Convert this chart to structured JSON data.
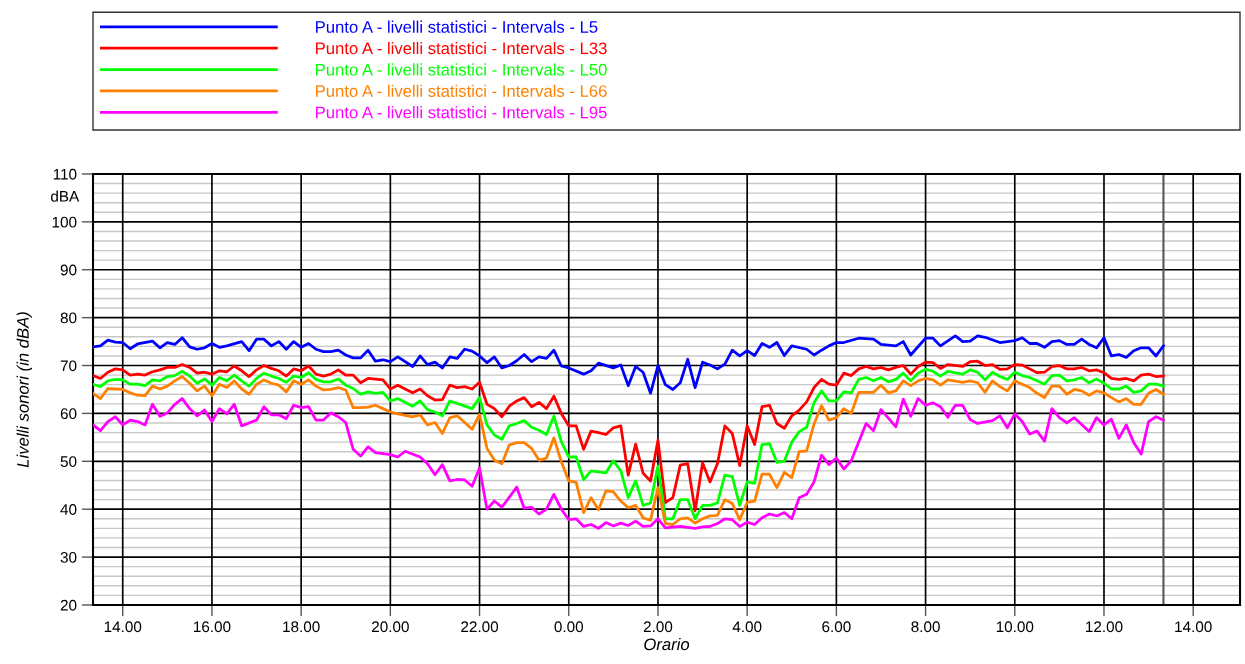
{
  "chart_data": {
    "type": "line",
    "xlabel": "Orario",
    "ylabel": "Livelli sonori (in dBA)",
    "annotations": [
      "dBA"
    ],
    "xlim": [
      "2000-01-01T13:20",
      "2000-01-02T15:03"
    ],
    "xticks": [
      {
        "value": "2000-01-01T14:00",
        "label": "14.00"
      },
      {
        "value": "2000-01-01T16:00",
        "label": "16.00"
      },
      {
        "value": "2000-01-01T18:00",
        "label": "18.00"
      },
      {
        "value": "2000-01-01T20:00",
        "label": "20.00"
      },
      {
        "value": "2000-01-01T22:00",
        "label": "22.00"
      },
      {
        "value": "2000-01-02T00:00",
        "label": "0.00"
      },
      {
        "value": "2000-01-02T02:00",
        "label": "2.00"
      },
      {
        "value": "2000-01-02T04:00",
        "label": "4.00"
      },
      {
        "value": "2000-01-02T06:00",
        "label": "6.00"
      },
      {
        "value": "2000-01-02T08:00",
        "label": "8.00"
      },
      {
        "value": "2000-01-02T10:00",
        "label": "10.00"
      },
      {
        "value": "2000-01-02T12:00",
        "label": "12.00"
      },
      {
        "value": "2000-01-02T14:00",
        "label": "14.00"
      }
    ],
    "ylim": [
      20,
      110
    ],
    "yticks": [
      20,
      {
        "value": 22,
        "label": null
      },
      {
        "value": 24,
        "label": null
      },
      {
        "value": 26,
        "label": null
      },
      {
        "value": 28,
        "label": null
      },
      30,
      {
        "value": 32,
        "label": null
      },
      {
        "value": 34,
        "label": null
      },
      {
        "value": 36,
        "label": null
      },
      {
        "value": 38,
        "label": null
      },
      40,
      {
        "value": 42,
        "label": null
      },
      {
        "value": 44,
        "label": null
      },
      {
        "value": 46,
        "label": null
      },
      {
        "value": 48,
        "label": null
      },
      50,
      {
        "value": 52,
        "label": null
      },
      {
        "value": 54,
        "label": null
      },
      {
        "value": 56,
        "label": null
      },
      {
        "value": 58,
        "label": null
      },
      60,
      {
        "value": 62,
        "label": null
      },
      {
        "value": 64,
        "label": null
      },
      {
        "value": 66,
        "label": null
      },
      {
        "value": 68,
        "label": null
      },
      70,
      {
        "value": 72,
        "label": null
      },
      {
        "value": 74,
        "label": null
      },
      {
        "value": 76,
        "label": null
      },
      {
        "value": 78,
        "label": null
      },
      80,
      {
        "value": 82,
        "label": null
      },
      {
        "value": 84,
        "label": null
      },
      {
        "value": 86,
        "label": null
      },
      {
        "value": 88,
        "label": null
      },
      90,
      {
        "value": 92,
        "label": null
      },
      {
        "value": 94,
        "label": null
      },
      {
        "value": 96,
        "label": null
      },
      {
        "value": 98,
        "label": null
      },
      100,
      {
        "value": 102,
        "label": null
      },
      {
        "value": 104,
        "label": null
      },
      {
        "value": 106,
        "label": null
      },
      {
        "value": 108,
        "label": null
      },
      110
    ],
    "grid": true,
    "legend": "top",
    "marker": "none",
    "line_style": "solid",
    "ref_lines": [
      {
        "axis": "x",
        "value": "2000-01-02T13:20",
        "label": null,
        "color": "#555555"
      }
    ],
    "series": [
      {
        "name": "Punto A - livelli statistici - Intervals - L5",
        "color": "#0000ff",
        "x": [
          "2000-01-01T13:20",
          "2000-01-01T13:30",
          "2000-01-01T13:40",
          "2000-01-01T13:50",
          "2000-01-01T14:00",
          "2000-01-01T14:10",
          "2000-01-01T14:20",
          "2000-01-01T14:40",
          "2000-01-01T14:50",
          "2000-01-01T15:00",
          "2000-01-01T15:10",
          "2000-01-01T15:20",
          "2000-01-01T15:30",
          "2000-01-01T15:40",
          "2000-01-01T15:50",
          "2000-01-01T16:00",
          "2000-01-01T16:10",
          "2000-01-01T16:20",
          "2000-01-01T16:40",
          "2000-01-01T16:50",
          "2000-01-01T17:00",
          "2000-01-01T17:10",
          "2000-01-01T17:20",
          "2000-01-01T17:30",
          "2000-01-01T17:40",
          "2000-01-01T17:50",
          "2000-01-01T18:00",
          "2000-01-01T18:10",
          "2000-01-01T18:20",
          "2000-01-01T18:30",
          "2000-01-01T18:40",
          "2000-01-01T18:50",
          "2000-01-01T19:00",
          "2000-01-01T19:10",
          "2000-01-01T19:20",
          "2000-01-01T19:30",
          "2000-01-01T19:40",
          "2000-01-01T19:50",
          "2000-01-01T20:00",
          "2000-01-01T20:10",
          "2000-01-01T20:30",
          "2000-01-01T20:40",
          "2000-01-01T20:50",
          "2000-01-01T21:00",
          "2000-01-01T21:10",
          "2000-01-01T21:20",
          "2000-01-01T21:30",
          "2000-01-01T21:40",
          "2000-01-01T21:50",
          "2000-01-01T22:00",
          "2000-01-01T22:10",
          "2000-01-01T22:20",
          "2000-01-01T22:30",
          "2000-01-01T22:40",
          "2000-01-01T22:50",
          "2000-01-01T23:00",
          "2000-01-01T23:10",
          "2000-01-01T23:20",
          "2000-01-01T23:30",
          "2000-01-01T23:40",
          "2000-01-01T23:50",
          "2000-01-02T00:00",
          "2000-01-02T00:20",
          "2000-01-02T00:30",
          "2000-01-02T00:40",
          "2000-01-02T01:00",
          "2000-01-02T01:10",
          "2000-01-02T01:20",
          "2000-01-02T01:30",
          "2000-01-02T01:40",
          "2000-01-02T01:50",
          "2000-01-02T02:00",
          "2000-01-02T02:10",
          "2000-01-02T02:20",
          "2000-01-02T02:30",
          "2000-01-02T02:40",
          "2000-01-02T02:50",
          "2000-01-02T03:00",
          "2000-01-02T03:10",
          "2000-01-02T03:20",
          "2000-01-02T03:30",
          "2000-01-02T03:40",
          "2000-01-02T03:50",
          "2000-01-02T04:00",
          "2000-01-02T04:10",
          "2000-01-02T04:20",
          "2000-01-02T04:30",
          "2000-01-02T04:40",
          "2000-01-02T04:50",
          "2000-01-02T05:00",
          "2000-01-02T05:20",
          "2000-01-02T05:30",
          "2000-01-02T05:40",
          "2000-01-02T05:50",
          "2000-01-02T06:00",
          "2000-01-02T06:10",
          "2000-01-02T06:30",
          "2000-01-02T06:50",
          "2000-01-02T07:00",
          "2000-01-02T07:20",
          "2000-01-02T07:30",
          "2000-01-02T07:40",
          "2000-01-02T08:00",
          "2000-01-02T08:10",
          "2000-01-02T08:20",
          "2000-01-02T08:40",
          "2000-01-02T08:50",
          "2000-01-02T09:00",
          "2000-01-02T09:10",
          "2000-01-02T09:20",
          "2000-01-02T09:40",
          "2000-01-02T10:00",
          "2000-01-02T10:10",
          "2000-01-02T10:20",
          "2000-01-02T10:30",
          "2000-01-02T10:40",
          "2000-01-02T10:50",
          "2000-01-02T11:00",
          "2000-01-02T11:10",
          "2000-01-02T11:20",
          "2000-01-02T11:30",
          "2000-01-02T11:40",
          "2000-01-02T11:50",
          "2000-01-02T12:00",
          "2000-01-02T12:10",
          "2000-01-02T12:20",
          "2000-01-02T12:30",
          "2000-01-02T12:40",
          "2000-01-02T12:50",
          "2000-01-02T13:00",
          "2000-01-02T13:10",
          "2000-01-02T13:20"
        ],
        "values": [
          73.9,
          74.1,
          75.3,
          74.9,
          74.8,
          73.5,
          74.5,
          75.1,
          73.7,
          74.8,
          74.4,
          75.8,
          73.9,
          73.4,
          73.7,
          74.6,
          73.8,
          74.1,
          75.0,
          73.1,
          75.5,
          75.5,
          74.1,
          75.0,
          73.4,
          75.0,
          73.8,
          74.6,
          73.4,
          72.9,
          72.9,
          73.2,
          72.2,
          71.6,
          71.6,
          73.2,
          70.9,
          71.2,
          70.8,
          71.8,
          69.8,
          72.0,
          70.2,
          70.7,
          69.5,
          71.8,
          71.5,
          73.4,
          73.0,
          72.0,
          70.6,
          71.8,
          69.5,
          70.0,
          71.0,
          72.3,
          70.8,
          71.8,
          71.5,
          73.2,
          69.9,
          69.5,
          68.2,
          68.9,
          70.5,
          69.5,
          70.1,
          65.8,
          69.8,
          68.6,
          64.2,
          70.0,
          66.0,
          65.0,
          66.4,
          71.3,
          65.4,
          70.7,
          70.1,
          69.3,
          70.3,
          73.2,
          72.0,
          73.1,
          72.1,
          74.6,
          73.8,
          74.8,
          72.1,
          74.1,
          73.4,
          72.2,
          73.2,
          74.1,
          74.8,
          74.8,
          75.7,
          75.5,
          74.4,
          74.1,
          75.0,
          72.2,
          75.7,
          75.7,
          74.1,
          76.2,
          75.0,
          75.1,
          76.2,
          75.9,
          74.8,
          75.2,
          75.8,
          74.6,
          74.6,
          73.8,
          75.0,
          75.2,
          74.4,
          74.4,
          75.5,
          74.4,
          73.7,
          75.8,
          72.0,
          72.3,
          71.7,
          73.1,
          73.7,
          73.7,
          72.0,
          74.1
        ]
      },
      {
        "name": "Punto A - livelli statistici - Intervals - L33",
        "color": "#ff0000",
        "x": [
          "2000-01-01T13:20",
          "2000-01-01T13:30",
          "2000-01-01T13:40",
          "2000-01-01T13:50",
          "2000-01-01T14:00",
          "2000-01-01T14:10",
          "2000-01-01T14:20",
          "2000-01-01T14:30",
          "2000-01-01T14:40",
          "2000-01-01T14:50",
          "2000-01-01T15:00",
          "2000-01-01T15:10",
          "2000-01-01T15:20",
          "2000-01-01T15:30",
          "2000-01-01T15:40",
          "2000-01-01T15:50",
          "2000-01-01T16:00",
          "2000-01-01T16:10",
          "2000-01-01T16:20",
          "2000-01-01T16:30",
          "2000-01-01T16:40",
          "2000-01-01T16:50",
          "2000-01-01T17:00",
          "2000-01-01T17:10",
          "2000-01-01T17:20",
          "2000-01-01T17:30",
          "2000-01-01T17:40",
          "2000-01-01T17:50",
          "2000-01-01T18:00",
          "2000-01-01T18:10",
          "2000-01-01T18:20",
          "2000-01-01T18:30",
          "2000-01-01T18:40",
          "2000-01-01T18:50",
          "2000-01-01T19:00",
          "2000-01-01T19:10",
          "2000-01-01T19:20",
          "2000-01-01T19:30",
          "2000-01-01T19:50",
          "2000-01-01T20:00",
          "2000-01-01T20:10",
          "2000-01-01T20:30",
          "2000-01-01T20:40",
          "2000-01-01T20:50",
          "2000-01-01T21:00",
          "2000-01-01T21:10",
          "2000-01-01T21:20",
          "2000-01-01T21:30",
          "2000-01-01T21:40",
          "2000-01-01T21:50",
          "2000-01-01T22:00",
          "2000-01-01T22:10",
          "2000-01-01T22:20",
          "2000-01-01T22:30",
          "2000-01-01T22:40",
          "2000-01-01T22:50",
          "2000-01-01T23:00",
          "2000-01-01T23:10",
          "2000-01-01T23:20",
          "2000-01-01T23:30",
          "2000-01-01T23:40",
          "2000-01-01T23:50",
          "2000-01-02T00:00",
          "2000-01-02T00:10",
          "2000-01-02T00:20",
          "2000-01-02T00:30",
          "2000-01-02T00:40",
          "2000-01-02T00:50",
          "2000-01-02T01:00",
          "2000-01-02T01:10",
          "2000-01-02T01:20",
          "2000-01-02T01:30",
          "2000-01-02T01:40",
          "2000-01-02T01:50",
          "2000-01-02T02:00",
          "2000-01-02T02:10",
          "2000-01-02T02:20",
          "2000-01-02T02:30",
          "2000-01-02T02:40",
          "2000-01-02T02:50",
          "2000-01-02T03:00",
          "2000-01-02T03:10",
          "2000-01-02T03:20",
          "2000-01-02T03:30",
          "2000-01-02T03:40",
          "2000-01-02T03:50",
          "2000-01-02T04:00",
          "2000-01-02T04:10",
          "2000-01-02T04:20",
          "2000-01-02T04:30",
          "2000-01-02T04:40",
          "2000-01-02T04:50",
          "2000-01-02T05:00",
          "2000-01-02T05:10",
          "2000-01-02T05:20",
          "2000-01-02T05:30",
          "2000-01-02T05:40",
          "2000-01-02T05:50",
          "2000-01-02T06:00",
          "2000-01-02T06:10",
          "2000-01-02T06:20",
          "2000-01-02T06:30",
          "2000-01-02T06:40",
          "2000-01-02T06:50",
          "2000-01-02T07:00",
          "2000-01-02T07:10",
          "2000-01-02T07:20",
          "2000-01-02T07:30",
          "2000-01-02T07:40",
          "2000-01-02T07:50",
          "2000-01-02T08:00",
          "2000-01-02T08:10",
          "2000-01-02T08:20",
          "2000-01-02T08:30",
          "2000-01-02T08:50",
          "2000-01-02T09:00",
          "2000-01-02T09:10",
          "2000-01-02T09:20",
          "2000-01-02T09:30",
          "2000-01-02T09:40",
          "2000-01-02T09:50",
          "2000-01-02T10:00",
          "2000-01-02T10:10",
          "2000-01-02T10:20",
          "2000-01-02T10:30",
          "2000-01-02T10:40",
          "2000-01-02T10:50",
          "2000-01-02T11:00",
          "2000-01-02T11:10",
          "2000-01-02T11:20",
          "2000-01-02T11:30",
          "2000-01-02T11:40",
          "2000-01-02T11:50",
          "2000-01-02T12:00",
          "2000-01-02T12:10",
          "2000-01-02T12:20",
          "2000-01-02T12:30",
          "2000-01-02T12:40",
          "2000-01-02T12:50",
          "2000-01-02T13:00",
          "2000-01-02T13:10",
          "2000-01-02T13:20"
        ],
        "values": [
          67.9,
          67.3,
          68.6,
          69.3,
          69.1,
          68.0,
          68.2,
          68.0,
          68.7,
          69.1,
          69.6,
          69.6,
          70.2,
          69.6,
          68.4,
          68.6,
          68.2,
          68.9,
          68.7,
          69.9,
          68.9,
          67.7,
          69.1,
          70.0,
          69.4,
          68.9,
          67.8,
          69.3,
          68.9,
          69.9,
          68.2,
          67.8,
          68.2,
          69.1,
          68.0,
          68.0,
          66.4,
          67.3,
          67.0,
          65.1,
          65.9,
          64.3,
          65.1,
          63.7,
          62.8,
          62.9,
          65.9,
          65.4,
          65.6,
          65.1,
          66.5,
          61.9,
          61.0,
          59.3,
          61.5,
          62.6,
          63.3,
          61.4,
          62.3,
          61.0,
          63.6,
          60.0,
          57.4,
          57.4,
          52.5,
          56.3,
          56.0,
          55.6,
          57.0,
          57.4,
          47.1,
          53.6,
          47.5,
          45.9,
          54.4,
          41.4,
          42.4,
          49.2,
          49.5,
          39.7,
          49.7,
          45.7,
          49.5,
          57.4,
          55.8,
          49.1,
          57.4,
          53.5,
          61.4,
          61.7,
          57.9,
          56.9,
          59.5,
          60.7,
          62.4,
          65.4,
          67.1,
          66.1,
          65.9,
          68.4,
          67.9,
          69.3,
          69.8,
          69.3,
          69.6,
          69.1,
          69.6,
          70.0,
          68.2,
          69.8,
          70.7,
          70.6,
          69.4,
          70.2,
          69.8,
          70.8,
          70.9,
          70.0,
          70.2,
          69.2,
          69.3,
          70.2,
          70.1,
          69.3,
          68.5,
          68.6,
          69.8,
          70.0,
          69.3,
          69.3,
          69.6,
          68.9,
          69.1,
          68.5,
          67.3,
          67.1,
          67.3,
          66.8,
          68.0,
          68.2,
          67.7,
          67.8
        ]
      },
      {
        "name": "Punto A - livelli statistici - Intervals - L50",
        "color": "#00ff00",
        "x": [
          "2000-01-01T13:20",
          "2000-01-01T13:30",
          "2000-01-01T13:40",
          "2000-01-01T13:50",
          "2000-01-01T14:00",
          "2000-01-01T14:10",
          "2000-01-01T14:20",
          "2000-01-01T14:30",
          "2000-01-01T14:40",
          "2000-01-01T14:50",
          "2000-01-01T15:00",
          "2000-01-01T15:10",
          "2000-01-01T15:20",
          "2000-01-01T15:30",
          "2000-01-01T15:40",
          "2000-01-01T15:50",
          "2000-01-01T16:00",
          "2000-01-01T16:10",
          "2000-01-01T16:20",
          "2000-01-01T16:30",
          "2000-01-01T16:40",
          "2000-01-01T16:50",
          "2000-01-01T17:00",
          "2000-01-01T17:10",
          "2000-01-01T17:20",
          "2000-01-01T17:30",
          "2000-01-01T17:40",
          "2000-01-01T17:50",
          "2000-01-01T18:00",
          "2000-01-01T18:10",
          "2000-01-01T18:20",
          "2000-01-01T18:30",
          "2000-01-01T18:40",
          "2000-01-01T18:50",
          "2000-01-01T19:00",
          "2000-01-01T19:10",
          "2000-01-01T19:20",
          "2000-01-01T19:30",
          "2000-01-01T19:40",
          "2000-01-01T19:50",
          "2000-01-01T20:00",
          "2000-01-01T20:10",
          "2000-01-01T20:30",
          "2000-01-01T20:40",
          "2000-01-01T20:50",
          "2000-01-01T21:00",
          "2000-01-01T21:10",
          "2000-01-01T21:20",
          "2000-01-01T21:30",
          "2000-01-01T21:50",
          "2000-01-01T22:00",
          "2000-01-01T22:10",
          "2000-01-01T22:20",
          "2000-01-01T22:30",
          "2000-01-01T22:40",
          "2000-01-01T22:50",
          "2000-01-01T23:00",
          "2000-01-01T23:10",
          "2000-01-01T23:20",
          "2000-01-01T23:30",
          "2000-01-01T23:40",
          "2000-01-01T23:50",
          "2000-01-02T00:00",
          "2000-01-02T00:10",
          "2000-01-02T00:20",
          "2000-01-02T00:30",
          "2000-01-02T00:50",
          "2000-01-02T01:00",
          "2000-01-02T01:10",
          "2000-01-02T01:20",
          "2000-01-02T01:30",
          "2000-01-02T01:40",
          "2000-01-02T01:50",
          "2000-01-02T02:00",
          "2000-01-02T02:10",
          "2000-01-02T02:20",
          "2000-01-02T02:30",
          "2000-01-02T02:40",
          "2000-01-02T02:50",
          "2000-01-02T03:00",
          "2000-01-02T03:10",
          "2000-01-02T03:20",
          "2000-01-02T03:30",
          "2000-01-02T03:40",
          "2000-01-02T03:50",
          "2000-01-02T04:00",
          "2000-01-02T04:10",
          "2000-01-02T04:20",
          "2000-01-02T04:30",
          "2000-01-02T04:40",
          "2000-01-02T04:50",
          "2000-01-02T05:00",
          "2000-01-02T05:10",
          "2000-01-02T05:20",
          "2000-01-02T05:30",
          "2000-01-02T05:40",
          "2000-01-02T05:50",
          "2000-01-02T06:00",
          "2000-01-02T06:10",
          "2000-01-02T06:20",
          "2000-01-02T06:30",
          "2000-01-02T06:40",
          "2000-01-02T06:50",
          "2000-01-02T07:00",
          "2000-01-02T07:10",
          "2000-01-02T07:20",
          "2000-01-02T07:30",
          "2000-01-02T07:40",
          "2000-01-02T07:50",
          "2000-01-02T08:00",
          "2000-01-02T08:10",
          "2000-01-02T08:20",
          "2000-01-02T08:30",
          "2000-01-02T08:50",
          "2000-01-02T09:00",
          "2000-01-02T09:10",
          "2000-01-02T09:20",
          "2000-01-02T09:30",
          "2000-01-02T09:40",
          "2000-01-02T09:50",
          "2000-01-02T10:00",
          "2000-01-02T10:10",
          "2000-01-02T10:20",
          "2000-01-02T10:30",
          "2000-01-02T10:40",
          "2000-01-02T10:50",
          "2000-01-02T11:00",
          "2000-01-02T11:10",
          "2000-01-02T11:20",
          "2000-01-02T11:30",
          "2000-01-02T11:40",
          "2000-01-02T11:50",
          "2000-01-02T12:00",
          "2000-01-02T12:10",
          "2000-01-02T12:20",
          "2000-01-02T12:30",
          "2000-01-02T12:40",
          "2000-01-02T12:50",
          "2000-01-02T13:00",
          "2000-01-02T13:10",
          "2000-01-02T13:20"
        ],
        "values": [
          66.1,
          65.6,
          66.8,
          67.1,
          67.0,
          66.1,
          66.1,
          65.8,
          67.0,
          66.8,
          67.7,
          67.9,
          68.8,
          67.8,
          66.3,
          67.2,
          65.9,
          67.5,
          66.8,
          68.0,
          66.8,
          65.7,
          67.3,
          68.4,
          67.8,
          67.3,
          66.5,
          67.8,
          67.5,
          68.5,
          67.1,
          66.6,
          66.6,
          67.2,
          65.9,
          65.2,
          64.0,
          64.5,
          64.2,
          64.4,
          62.6,
          63.1,
          61.5,
          62.6,
          60.8,
          60.3,
          59.5,
          62.6,
          62.1,
          61.0,
          63.3,
          57.6,
          55.5,
          54.6,
          57.4,
          57.9,
          58.5,
          57.1,
          56.5,
          55.6,
          59.4,
          54.1,
          50.9,
          50.9,
          46.2,
          48.0,
          47.6,
          50.1,
          48.0,
          42.4,
          45.9,
          40.8,
          41.3,
          49.0,
          38.0,
          38.0,
          42.0,
          42.0,
          38.0,
          40.8,
          40.8,
          41.3,
          47.1,
          46.8,
          40.8,
          45.7,
          45.4,
          53.5,
          53.7,
          49.8,
          50.0,
          54.0,
          56.2,
          57.1,
          62.3,
          64.7,
          62.6,
          62.6,
          64.5,
          64.3,
          67.1,
          67.5,
          66.8,
          67.5,
          66.6,
          67.1,
          68.4,
          66.8,
          68.4,
          69.2,
          68.8,
          67.8,
          68.8,
          68.2,
          69.1,
          68.6,
          67.0,
          68.6,
          67.7,
          67.1,
          68.6,
          67.9,
          67.5,
          66.8,
          66.1,
          67.9,
          68.0,
          66.8,
          67.0,
          67.5,
          66.4,
          67.2,
          66.3,
          65.1,
          65.1,
          65.7,
          64.4,
          64.7,
          66.1,
          66.1,
          65.7
        ]
      },
      {
        "name": "Punto A - livelli statistici - Intervals - L66",
        "color": "#ff8000",
        "x": [
          "2000-01-01T13:20",
          "2000-01-01T13:30",
          "2000-01-01T13:40",
          "2000-01-01T13:50",
          "2000-01-01T14:00",
          "2000-01-01T14:10",
          "2000-01-01T14:20",
          "2000-01-01T14:30",
          "2000-01-01T14:40",
          "2000-01-01T14:50",
          "2000-01-01T15:00",
          "2000-01-01T15:10",
          "2000-01-01T15:20",
          "2000-01-01T15:30",
          "2000-01-01T15:40",
          "2000-01-01T15:50",
          "2000-01-01T16:00",
          "2000-01-01T16:10",
          "2000-01-01T16:20",
          "2000-01-01T16:30",
          "2000-01-01T16:40",
          "2000-01-01T16:50",
          "2000-01-01T17:00",
          "2000-01-01T17:10",
          "2000-01-01T17:20",
          "2000-01-01T17:30",
          "2000-01-01T17:40",
          "2000-01-01T17:50",
          "2000-01-01T18:00",
          "2000-01-01T18:10",
          "2000-01-01T18:20",
          "2000-01-01T18:30",
          "2000-01-01T18:40",
          "2000-01-01T18:50",
          "2000-01-01T19:00",
          "2000-01-01T19:10",
          "2000-01-01T19:20",
          "2000-01-01T19:30",
          "2000-01-01T19:40",
          "2000-01-01T19:50",
          "2000-01-01T20:00",
          "2000-01-01T20:10",
          "2000-01-01T20:30",
          "2000-01-01T20:40",
          "2000-01-01T20:50",
          "2000-01-01T21:00",
          "2000-01-01T21:10",
          "2000-01-01T21:20",
          "2000-01-01T21:30",
          "2000-01-01T21:50",
          "2000-01-01T22:00",
          "2000-01-01T22:10",
          "2000-01-01T22:20",
          "2000-01-01T22:30",
          "2000-01-01T22:40",
          "2000-01-01T22:50",
          "2000-01-01T23:00",
          "2000-01-01T23:10",
          "2000-01-01T23:20",
          "2000-01-01T23:30",
          "2000-01-01T23:40",
          "2000-01-01T23:50",
          "2000-01-02T00:00",
          "2000-01-02T00:10",
          "2000-01-02T00:20",
          "2000-01-02T00:30",
          "2000-01-02T00:40",
          "2000-01-02T00:50",
          "2000-01-02T01:00",
          "2000-01-02T01:10",
          "2000-01-02T01:20",
          "2000-01-02T01:30",
          "2000-01-02T01:40",
          "2000-01-02T01:50",
          "2000-01-02T02:00",
          "2000-01-02T02:10",
          "2000-01-02T02:20",
          "2000-01-02T02:30",
          "2000-01-02T02:40",
          "2000-01-02T02:50",
          "2000-01-02T03:00",
          "2000-01-02T03:10",
          "2000-01-02T03:20",
          "2000-01-02T03:30",
          "2000-01-02T03:40",
          "2000-01-02T03:50",
          "2000-01-02T04:00",
          "2000-01-02T04:10",
          "2000-01-02T04:20",
          "2000-01-02T04:30",
          "2000-01-02T04:40",
          "2000-01-02T04:50",
          "2000-01-02T05:00",
          "2000-01-02T05:10",
          "2000-01-02T05:20",
          "2000-01-02T05:30",
          "2000-01-02T05:40",
          "2000-01-02T05:50",
          "2000-01-02T06:00",
          "2000-01-02T06:10",
          "2000-01-02T06:20",
          "2000-01-02T06:30",
          "2000-01-02T06:50",
          "2000-01-02T07:00",
          "2000-01-02T07:10",
          "2000-01-02T07:20",
          "2000-01-02T07:30",
          "2000-01-02T07:40",
          "2000-01-02T07:50",
          "2000-01-02T08:00",
          "2000-01-02T08:10",
          "2000-01-02T08:20",
          "2000-01-02T08:30",
          "2000-01-02T08:50",
          "2000-01-02T09:00",
          "2000-01-02T09:10",
          "2000-01-02T09:20",
          "2000-01-02T09:30",
          "2000-01-02T09:40",
          "2000-01-02T09:50",
          "2000-01-02T10:00",
          "2000-01-02T10:10",
          "2000-01-02T10:20",
          "2000-01-02T10:30",
          "2000-01-02T10:40",
          "2000-01-02T10:50",
          "2000-01-02T11:00",
          "2000-01-02T11:10",
          "2000-01-02T11:20",
          "2000-01-02T11:30",
          "2000-01-02T11:40",
          "2000-01-02T11:50",
          "2000-01-02T12:00",
          "2000-01-02T12:10",
          "2000-01-02T12:20",
          "2000-01-02T12:30",
          "2000-01-02T12:40",
          "2000-01-02T12:50",
          "2000-01-02T13:00",
          "2000-01-02T13:10",
          "2000-01-02T13:20"
        ],
        "values": [
          64.2,
          63.1,
          65.2,
          65.1,
          65.0,
          64.3,
          63.8,
          63.7,
          65.7,
          65.1,
          65.7,
          66.8,
          67.7,
          66.3,
          64.7,
          65.7,
          63.7,
          66.1,
          65.4,
          66.8,
          65.1,
          64.0,
          66.1,
          67.0,
          66.3,
          65.9,
          64.5,
          66.8,
          66.1,
          67.0,
          65.7,
          64.9,
          65.0,
          65.4,
          64.9,
          61.2,
          61.2,
          61.3,
          61.7,
          61.0,
          60.3,
          59.9,
          59.3,
          59.7,
          57.6,
          58.1,
          55.8,
          59.1,
          59.5,
          56.7,
          59.8,
          52.7,
          50.2,
          49.5,
          53.4,
          53.9,
          53.9,
          52.7,
          50.2,
          50.7,
          54.9,
          49.9,
          45.9,
          45.6,
          39.3,
          42.4,
          39.9,
          43.8,
          43.6,
          41.7,
          40.3,
          40.8,
          38.2,
          37.7,
          44.5,
          37.0,
          36.8,
          38.0,
          38.2,
          37.1,
          38.0,
          38.6,
          38.7,
          42.0,
          41.2,
          37.8,
          41.4,
          41.7,
          47.3,
          47.3,
          44.5,
          47.7,
          46.6,
          52.0,
          52.2,
          57.8,
          61.6,
          58.6,
          59.1,
          61.0,
          60.0,
          64.4,
          64.4,
          65.9,
          64.3,
          64.7,
          66.8,
          65.8,
          66.8,
          67.3,
          67.0,
          65.9,
          67.0,
          66.5,
          66.8,
          66.4,
          64.4,
          66.8,
          65.6,
          64.7,
          66.8,
          66.1,
          65.4,
          64.2,
          63.3,
          65.7,
          65.7,
          64.0,
          65.0,
          64.7,
          63.8,
          64.7,
          64.3,
          63.3,
          62.4,
          63.1,
          61.9,
          61.9,
          64.2,
          65.0,
          64.0
        ]
      },
      {
        "name": "Punto A - livelli statistici - Intervals - L95",
        "color": "#ff00ff",
        "x": [
          "2000-01-01T13:20",
          "2000-01-01T13:30",
          "2000-01-01T13:40",
          "2000-01-01T13:50",
          "2000-01-01T14:00",
          "2000-01-01T14:10",
          "2000-01-01T14:20",
          "2000-01-01T14:30",
          "2000-01-01T14:40",
          "2000-01-01T14:50",
          "2000-01-01T15:00",
          "2000-01-01T15:10",
          "2000-01-01T15:20",
          "2000-01-01T15:30",
          "2000-01-01T15:40",
          "2000-01-01T15:50",
          "2000-01-01T16:00",
          "2000-01-01T16:10",
          "2000-01-01T16:20",
          "2000-01-01T16:30",
          "2000-01-01T16:40",
          "2000-01-01T17:00",
          "2000-01-01T17:10",
          "2000-01-01T17:20",
          "2000-01-01T17:30",
          "2000-01-01T17:40",
          "2000-01-01T17:50",
          "2000-01-01T18:00",
          "2000-01-01T18:10",
          "2000-01-01T18:20",
          "2000-01-01T18:30",
          "2000-01-01T18:40",
          "2000-01-01T18:50",
          "2000-01-01T19:00",
          "2000-01-01T19:10",
          "2000-01-01T19:20",
          "2000-01-01T19:30",
          "2000-01-01T19:40",
          "2000-01-01T19:50",
          "2000-01-01T20:00",
          "2000-01-01T20:10",
          "2000-01-01T20:20",
          "2000-01-01T20:40",
          "2000-01-01T20:50",
          "2000-01-01T21:00",
          "2000-01-01T21:10",
          "2000-01-01T21:20",
          "2000-01-01T21:30",
          "2000-01-01T21:40",
          "2000-01-01T21:50",
          "2000-01-01T22:00",
          "2000-01-01T22:10",
          "2000-01-01T22:20",
          "2000-01-01T22:30",
          "2000-01-01T22:50",
          "2000-01-01T23:00",
          "2000-01-01T23:10",
          "2000-01-01T23:20",
          "2000-01-01T23:30",
          "2000-01-01T23:40",
          "2000-01-01T23:50",
          "2000-01-02T00:00",
          "2000-01-02T00:10",
          "2000-01-02T00:20",
          "2000-01-02T00:30",
          "2000-01-02T00:40",
          "2000-01-02T00:50",
          "2000-01-02T01:00",
          "2000-01-02T01:10",
          "2000-01-02T01:20",
          "2000-01-02T01:30",
          "2000-01-02T01:40",
          "2000-01-02T01:50",
          "2000-01-02T02:00",
          "2000-01-02T02:10",
          "2000-01-02T02:30",
          "2000-01-02T02:50",
          "2000-01-02T03:00",
          "2000-01-02T03:10",
          "2000-01-02T03:20",
          "2000-01-02T03:30",
          "2000-01-02T03:40",
          "2000-01-02T03:50",
          "2000-01-02T04:00",
          "2000-01-02T04:10",
          "2000-01-02T04:20",
          "2000-01-02T04:30",
          "2000-01-02T04:40",
          "2000-01-02T04:50",
          "2000-01-02T05:00",
          "2000-01-02T05:10",
          "2000-01-02T05:20",
          "2000-01-02T05:30",
          "2000-01-02T05:40",
          "2000-01-02T05:50",
          "2000-01-02T06:00",
          "2000-01-02T06:10",
          "2000-01-02T06:20",
          "2000-01-02T06:40",
          "2000-01-02T06:50",
          "2000-01-02T07:00",
          "2000-01-02T07:10",
          "2000-01-02T07:20",
          "2000-01-02T07:30",
          "2000-01-02T07:40",
          "2000-01-02T07:50",
          "2000-01-02T08:00",
          "2000-01-02T08:10",
          "2000-01-02T08:20",
          "2000-01-02T08:30",
          "2000-01-02T08:40",
          "2000-01-02T08:50",
          "2000-01-02T09:00",
          "2000-01-02T09:10",
          "2000-01-02T09:30",
          "2000-01-02T09:40",
          "2000-01-02T09:50",
          "2000-01-02T10:00",
          "2000-01-02T10:10",
          "2000-01-02T10:20",
          "2000-01-02T10:30",
          "2000-01-02T10:40",
          "2000-01-02T10:50",
          "2000-01-02T11:00",
          "2000-01-02T11:10",
          "2000-01-02T11:20",
          "2000-01-02T11:30",
          "2000-01-02T11:40",
          "2000-01-02T11:50",
          "2000-01-02T12:00",
          "2000-01-02T12:10",
          "2000-01-02T12:20",
          "2000-01-02T12:30",
          "2000-01-02T12:40",
          "2000-01-02T12:50",
          "2000-01-02T13:00",
          "2000-01-02T13:10",
          "2000-01-02T13:20"
        ],
        "values": [
          57.6,
          56.4,
          58.3,
          59.3,
          57.6,
          58.6,
          58.3,
          57.6,
          61.9,
          59.4,
          60.1,
          61.9,
          63.1,
          61.0,
          59.5,
          60.7,
          58.3,
          61.0,
          59.9,
          61.9,
          57.4,
          58.6,
          61.4,
          59.7,
          59.7,
          58.9,
          61.7,
          61.2,
          61.4,
          58.6,
          58.6,
          60.1,
          59.3,
          58.1,
          52.5,
          51.1,
          53.0,
          51.8,
          51.6,
          51.4,
          50.9,
          52.1,
          50.9,
          49.5,
          47.2,
          49.3,
          45.9,
          46.2,
          46.1,
          44.8,
          48.6,
          40.0,
          41.7,
          40.4,
          44.6,
          40.2,
          40.4,
          39.0,
          40.0,
          43.1,
          40.0,
          37.8,
          38.0,
          36.4,
          36.8,
          36.0,
          37.2,
          36.5,
          37.1,
          36.6,
          37.5,
          36.4,
          36.5,
          38.0,
          36.1,
          36.4,
          36.0,
          36.3,
          36.4,
          37.0,
          38.0,
          37.8,
          36.4,
          37.3,
          36.8,
          38.2,
          39.0,
          38.6,
          39.3,
          38.0,
          42.4,
          43.1,
          45.7,
          51.3,
          49.3,
          50.7,
          48.4,
          50.1,
          57.9,
          56.4,
          60.8,
          59.0,
          57.2,
          63.0,
          59.4,
          63.1,
          61.7,
          62.2,
          61.4,
          59.2,
          61.7,
          61.7,
          58.7,
          57.9,
          58.5,
          59.5,
          57.0,
          59.9,
          58.3,
          55.7,
          56.3,
          54.2,
          61.0,
          59.1,
          58.0,
          59.1,
          57.7,
          56.2,
          59.1,
          57.6,
          58.8,
          54.8,
          57.6,
          53.9,
          51.5,
          58.3,
          59.3,
          58.6
        ]
      }
    ]
  }
}
